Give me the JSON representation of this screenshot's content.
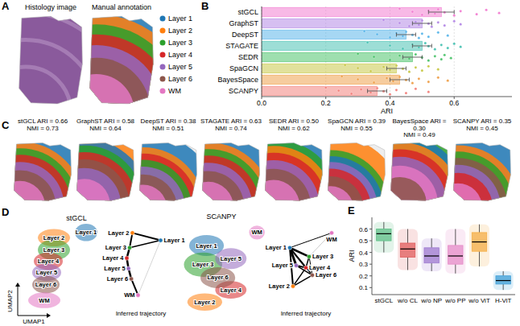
{
  "panel_letters": [
    "A",
    "B",
    "C",
    "D",
    "E"
  ],
  "panel_a": {
    "titles": [
      "Histology image",
      "Manual annotation"
    ],
    "legend": [
      {
        "name": "Layer 1",
        "color": "#1f77b4"
      },
      {
        "name": "Layer 2",
        "color": "#ff7f0e"
      },
      {
        "name": "Layer 3",
        "color": "#2ca02c"
      },
      {
        "name": "Layer 4",
        "color": "#d62728"
      },
      {
        "name": "Layer 5",
        "color": "#9467bd"
      },
      {
        "name": "Layer 6",
        "color": "#8c564b"
      },
      {
        "name": "WM",
        "color": "#e377c2"
      }
    ]
  },
  "chart_data": [
    {
      "type": "bar",
      "orientation": "horizontal",
      "categories": [
        "stGCL",
        "GraphST",
        "DeepST",
        "STAGATE",
        "SEDR",
        "SpaGCN",
        "BayesSpace",
        "SCANPY"
      ],
      "values": [
        0.56,
        0.5,
        0.45,
        0.5,
        0.47,
        0.42,
        0.43,
        0.36
      ],
      "errors": [
        0.04,
        0.03,
        0.03,
        0.03,
        0.03,
        0.03,
        0.03,
        0.03
      ],
      "points": [
        [
          0.43,
          0.47,
          0.5,
          0.52,
          0.54,
          0.55,
          0.57,
          0.6,
          0.62,
          0.67,
          0.7,
          0.74
        ],
        [
          0.38,
          0.43,
          0.46,
          0.48,
          0.49,
          0.5,
          0.52,
          0.53,
          0.55,
          0.57,
          0.6,
          0.62
        ],
        [
          0.32,
          0.36,
          0.4,
          0.42,
          0.44,
          0.45,
          0.47,
          0.49,
          0.5,
          0.52,
          0.55,
          0.58
        ],
        [
          0.33,
          0.4,
          0.44,
          0.47,
          0.49,
          0.51,
          0.52,
          0.54,
          0.56,
          0.58,
          0.6,
          0.62
        ],
        [
          0.3,
          0.35,
          0.4,
          0.43,
          0.46,
          0.48,
          0.5,
          0.52,
          0.54,
          0.56,
          0.57,
          0.59
        ],
        [
          0.26,
          0.3,
          0.34,
          0.38,
          0.4,
          0.42,
          0.44,
          0.46,
          0.48,
          0.5,
          0.52,
          0.55
        ],
        [
          0.25,
          0.3,
          0.35,
          0.39,
          0.41,
          0.43,
          0.45,
          0.47,
          0.49,
          0.52,
          0.55,
          0.58
        ],
        [
          0.2,
          0.24,
          0.28,
          0.31,
          0.34,
          0.36,
          0.38,
          0.4,
          0.42,
          0.45,
          0.48,
          0.52
        ]
      ],
      "colors": [
        "#f27fd2",
        "#b58ae6",
        "#5db7ea",
        "#4cc3b4",
        "#4fc46e",
        "#c9c94b",
        "#efa24e",
        "#f2837e"
      ],
      "xlabel": "ARI",
      "xlim": [
        0,
        0.78
      ],
      "xticks": [
        {
          "value": 0,
          "label": "0.0"
        },
        0.2,
        0.4,
        0.6
      ],
      "grid": true
    },
    {
      "type": "box",
      "categories": [
        "stGCL",
        "w/o CL",
        "w/o NP",
        "w/o PP",
        "w/o ViT",
        "H-ViT"
      ],
      "colors": [
        "#5fbf87",
        "#e05c5c",
        "#9f7bd0",
        "#e58cc8",
        "#f4ae45",
        "#3f9fd8"
      ],
      "q1": [
        0.5,
        0.36,
        0.31,
        0.3,
        0.41,
        0.13
      ],
      "median": [
        0.56,
        0.43,
        0.37,
        0.37,
        0.49,
        0.16
      ],
      "q3": [
        0.6,
        0.48,
        0.44,
        0.46,
        0.57,
        0.2
      ],
      "whisker_low": [
        0.4,
        0.25,
        0.24,
        0.22,
        0.28,
        0.08
      ],
      "whisker_high": [
        0.66,
        0.6,
        0.52,
        0.6,
        0.64,
        0.24
      ],
      "ylabel": "ARI",
      "ylim": [
        0.04,
        0.7
      ],
      "yticks": [
        0.1,
        0.2,
        0.3,
        0.4,
        0.5,
        0.6
      ]
    }
  ],
  "panel_c": {
    "maps": [
      {
        "title": "stGCL ARI = 0.66",
        "subtitle": "NMI = 0.73"
      },
      {
        "title": "GraphST ARI = 0.58",
        "subtitle": "NMI = 0.64"
      },
      {
        "title": "DeepST ARI = 0.38",
        "subtitle": "NMI = 0.51"
      },
      {
        "title": "STAGATE ARI = 0.63",
        "subtitle": "NMI = 0.74"
      },
      {
        "title": "SEDR ARI = 0.50",
        "subtitle": "NMI = 0.62"
      },
      {
        "title": "SpaGCN ARI = 0.39",
        "subtitle": "NMI = 0.55"
      },
      {
        "title": "BayesSpace ARI = 0.30",
        "subtitle": "NMI = 0.49"
      },
      {
        "title": "SCANPY ARI = 0.35",
        "subtitle": "NMI = 0.45"
      }
    ]
  },
  "panel_d": {
    "plots": [
      {
        "title": "stGCL"
      },
      {
        "title": "SCANPY"
      }
    ],
    "labels": [
      "Layer 1",
      "Layer 2",
      "Layer 3",
      "Layer 4",
      "Layer 5",
      "Layer 6",
      "WM"
    ],
    "trajectory_title": "Inferred trajectory",
    "xlabel": "UMAP1",
    "ylabel": "UMAP2"
  }
}
